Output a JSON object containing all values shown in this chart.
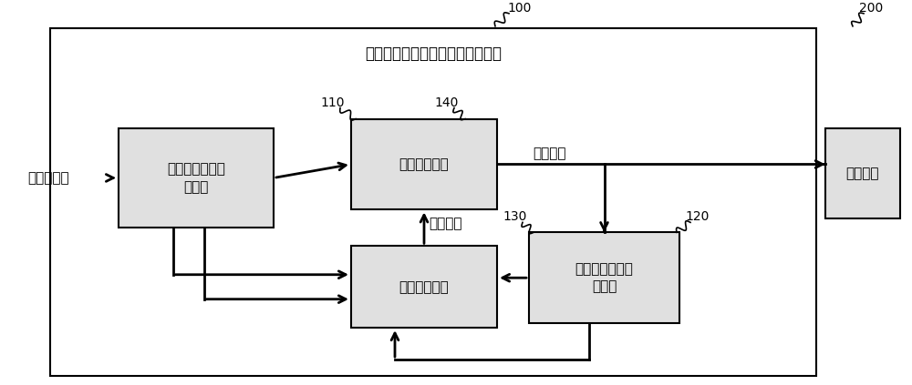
{
  "title": "外部模块在位检测及供电控制装置",
  "label_100": "100",
  "label_200": "200",
  "label_110": "110",
  "label_120": "120",
  "label_130": "130",
  "label_140": "140",
  "input_label": "一输入电源",
  "power_output_label": "电源输出",
  "switch_signal_label": "开关信号",
  "box_input_module_label": "输入电源采样转\n换模块",
  "box_switch_ctrl_label": "开关控制模块",
  "box_signal_proc_label": "信号处理模块",
  "box_output_fb_label": "输出电源电压反\n馈模块",
  "box_ext_module_label": "外部模块",
  "bg_color": "#ffffff",
  "box_fill": "#e0e0e0",
  "line_color": "#000000",
  "text_color": "#000000"
}
